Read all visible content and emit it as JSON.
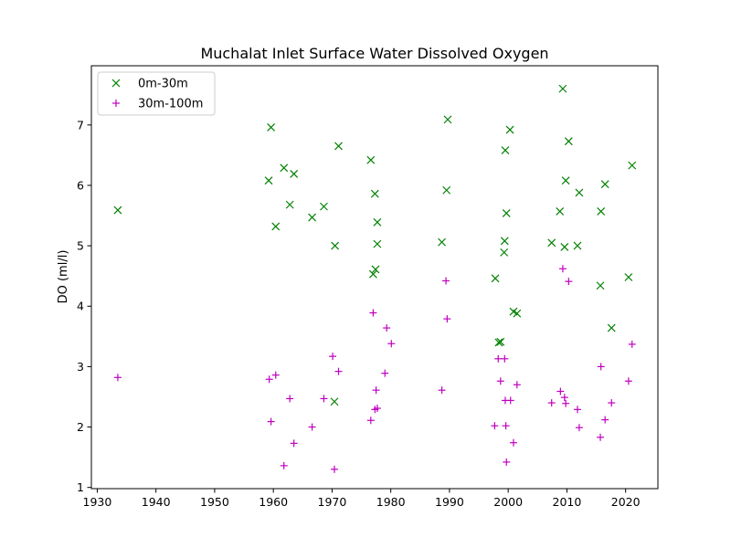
{
  "chart_data": {
    "type": "scatter",
    "title": "Muchalat Inlet Surface Water Dissolved Oxygen",
    "xlabel": "",
    "ylabel": "DO (ml/l)",
    "xlim": [
      1929,
      2025.5
    ],
    "ylim": [
      0.98,
      7.98
    ],
    "xticks": [
      1930,
      1940,
      1950,
      1960,
      1970,
      1980,
      1990,
      2000,
      2010,
      2020
    ],
    "yticks": [
      1,
      2,
      3,
      4,
      5,
      6,
      7
    ],
    "grid": false,
    "legend_position": "top-left",
    "series": [
      {
        "name": "0m-30m",
        "marker": "x",
        "color": "#008000",
        "points": [
          [
            1933.5,
            5.59
          ],
          [
            1959.2,
            6.08
          ],
          [
            1959.6,
            6.96
          ],
          [
            1960.4,
            5.32
          ],
          [
            1961.8,
            6.29
          ],
          [
            1962.8,
            5.68
          ],
          [
            1963.5,
            6.19
          ],
          [
            1966.6,
            5.47
          ],
          [
            1968.6,
            5.65
          ],
          [
            1970.5,
            5.0
          ],
          [
            1971.1,
            6.65
          ],
          [
            1970.4,
            2.42
          ],
          [
            1976.6,
            6.42
          ],
          [
            1977.0,
            4.53
          ],
          [
            1977.3,
            5.86
          ],
          [
            1977.4,
            4.61
          ],
          [
            1977.7,
            5.39
          ],
          [
            1977.7,
            5.03
          ],
          [
            1988.7,
            5.06
          ],
          [
            1989.5,
            5.92
          ],
          [
            1989.7,
            7.09
          ],
          [
            1997.8,
            4.46
          ],
          [
            1998.4,
            3.4
          ],
          [
            1998.7,
            3.41
          ],
          [
            1999.3,
            4.89
          ],
          [
            1999.4,
            5.08
          ],
          [
            1999.5,
            6.58
          ],
          [
            1999.7,
            5.54
          ],
          [
            2000.3,
            6.92
          ],
          [
            2000.9,
            3.91
          ],
          [
            2001.5,
            3.88
          ],
          [
            2007.4,
            5.05
          ],
          [
            2008.8,
            5.57
          ],
          [
            2009.3,
            7.6
          ],
          [
            2009.6,
            4.98
          ],
          [
            2009.8,
            6.08
          ],
          [
            2010.3,
            6.73
          ],
          [
            2011.8,
            5.0
          ],
          [
            2012.1,
            5.88
          ],
          [
            2015.7,
            4.34
          ],
          [
            2015.8,
            5.57
          ],
          [
            2016.5,
            6.02
          ],
          [
            2017.6,
            3.64
          ],
          [
            2020.5,
            4.48
          ],
          [
            2021.1,
            6.33
          ]
        ]
      },
      {
        "name": "30m-100m",
        "marker": "+",
        "color": "#bf00bf",
        "points": [
          [
            1933.5,
            2.82
          ],
          [
            1959.3,
            2.79
          ],
          [
            1959.6,
            2.09
          ],
          [
            1960.4,
            2.86
          ],
          [
            1961.8,
            1.36
          ],
          [
            1962.8,
            2.47
          ],
          [
            1963.5,
            1.73
          ],
          [
            1966.6,
            2.0
          ],
          [
            1968.6,
            2.47
          ],
          [
            1970.1,
            3.17
          ],
          [
            1970.4,
            1.3
          ],
          [
            1971.1,
            2.92
          ],
          [
            1976.6,
            2.11
          ],
          [
            1977.0,
            3.89
          ],
          [
            1977.3,
            2.29
          ],
          [
            1977.5,
            2.61
          ],
          [
            1977.7,
            2.31
          ],
          [
            1979.0,
            2.89
          ],
          [
            1979.3,
            3.64
          ],
          [
            1980.1,
            3.38
          ],
          [
            1988.7,
            2.61
          ],
          [
            1989.4,
            4.42
          ],
          [
            1989.6,
            3.79
          ],
          [
            1997.7,
            2.02
          ],
          [
            1998.3,
            3.13
          ],
          [
            1998.7,
            2.76
          ],
          [
            1999.4,
            3.13
          ],
          [
            1999.5,
            2.44
          ],
          [
            1999.6,
            2.02
          ],
          [
            1999.7,
            1.42
          ],
          [
            2000.4,
            2.44
          ],
          [
            2000.9,
            1.74
          ],
          [
            2001.5,
            2.7
          ],
          [
            2007.4,
            2.4
          ],
          [
            2008.9,
            2.59
          ],
          [
            2009.3,
            4.62
          ],
          [
            2009.6,
            2.49
          ],
          [
            2009.8,
            2.39
          ],
          [
            2010.3,
            4.41
          ],
          [
            2011.8,
            2.29
          ],
          [
            2012.1,
            1.99
          ],
          [
            2015.7,
            1.83
          ],
          [
            2015.8,
            3.0
          ],
          [
            2016.5,
            2.12
          ],
          [
            2017.6,
            2.4
          ],
          [
            2020.5,
            2.76
          ],
          [
            2021.1,
            3.37
          ]
        ]
      }
    ]
  }
}
